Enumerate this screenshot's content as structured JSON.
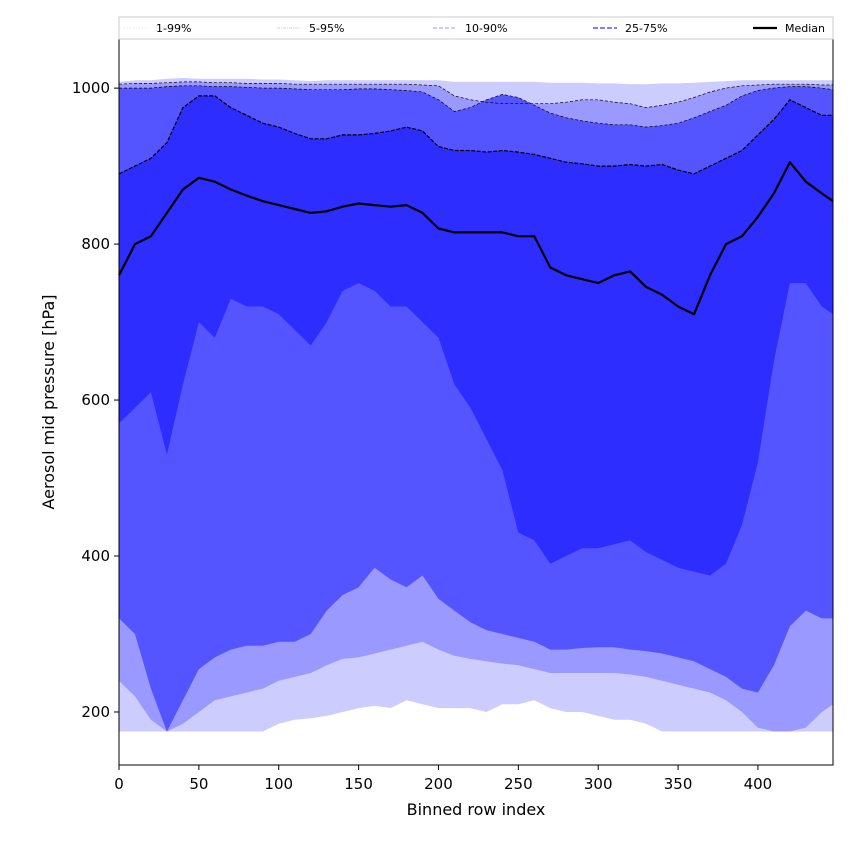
{
  "chart_data": {
    "type": "area",
    "xlabel": "Binned row index",
    "ylabel": "Aerosol mid pressure [hPa]",
    "xlim": [
      0,
      447
    ],
    "ylim": [
      132,
      1063
    ],
    "xticks": [
      0,
      50,
      100,
      150,
      200,
      250,
      300,
      350,
      400
    ],
    "yticks": [
      200,
      400,
      600,
      800,
      1000
    ],
    "grid": false,
    "legend_position": "top",
    "x": [
      0,
      10,
      20,
      30,
      40,
      50,
      60,
      70,
      80,
      90,
      100,
      110,
      120,
      130,
      140,
      150,
      160,
      170,
      180,
      190,
      200,
      210,
      220,
      230,
      240,
      250,
      260,
      270,
      280,
      290,
      300,
      310,
      320,
      330,
      340,
      350,
      360,
      370,
      380,
      390,
      400,
      410,
      420,
      430,
      440,
      447
    ],
    "bands": [
      {
        "name": "1-99%",
        "color": "#ccccff",
        "low": [
          175,
          175,
          175,
          175,
          175,
          175,
          175,
          175,
          175,
          175,
          185,
          190,
          192,
          195,
          200,
          205,
          208,
          205,
          215,
          210,
          205,
          205,
          205,
          200,
          210,
          210,
          215,
          205,
          200,
          200,
          195,
          190,
          190,
          185,
          175,
          175,
          175,
          175,
          175,
          175,
          175,
          175,
          175,
          175,
          175,
          175
        ],
        "high": [
          1008,
          1010,
          1010,
          1012,
          1013,
          1012,
          1012,
          1012,
          1012,
          1011,
          1011,
          1010,
          1009,
          1010,
          1010,
          1010,
          1010,
          1010,
          1010,
          1010,
          1010,
          1008,
          1008,
          1008,
          1008,
          1008,
          1008,
          1007,
          1007,
          1007,
          1006,
          1006,
          1005,
          1005,
          1006,
          1006,
          1007,
          1008,
          1009,
          1010,
          1010,
          1010,
          1010,
          1010,
          1010,
          1010
        ]
      },
      {
        "name": "5-95%",
        "color": "#9999ff",
        "low": [
          240,
          220,
          190,
          175,
          185,
          200,
          215,
          220,
          225,
          230,
          240,
          245,
          250,
          260,
          268,
          270,
          275,
          280,
          285,
          290,
          280,
          272,
          268,
          265,
          262,
          260,
          255,
          250,
          250,
          250,
          250,
          250,
          248,
          245,
          240,
          235,
          230,
          225,
          215,
          200,
          180,
          175,
          175,
          180,
          200,
          210
        ],
        "high": [
          1005,
          1006,
          1006,
          1007,
          1008,
          1008,
          1007,
          1007,
          1006,
          1006,
          1006,
          1005,
          1005,
          1005,
          1005,
          1005,
          1005,
          1005,
          1005,
          1004,
          1003,
          990,
          985,
          982,
          980,
          980,
          980,
          980,
          982,
          985,
          985,
          982,
          980,
          975,
          978,
          982,
          988,
          995,
          1000,
          1003,
          1004,
          1005,
          1005,
          1005,
          1004,
          1004
        ]
      },
      {
        "name": "10-90%",
        "color": "#5555ff",
        "low": [
          320,
          300,
          230,
          175,
          215,
          255,
          270,
          280,
          285,
          285,
          290,
          290,
          300,
          330,
          350,
          360,
          385,
          370,
          360,
          375,
          345,
          330,
          315,
          305,
          300,
          295,
          290,
          280,
          280,
          282,
          283,
          283,
          280,
          278,
          275,
          270,
          265,
          255,
          245,
          230,
          225,
          260,
          310,
          330,
          320,
          320
        ],
        "high": [
          1000,
          1000,
          1000,
          1002,
          1003,
          1003,
          1002,
          1002,
          1001,
          1000,
          1000,
          999,
          998,
          998,
          998,
          999,
          999,
          998,
          997,
          995,
          985,
          970,
          975,
          985,
          992,
          988,
          978,
          968,
          962,
          958,
          955,
          953,
          953,
          950,
          952,
          955,
          962,
          970,
          978,
          990,
          997,
          1000,
          1002,
          1002,
          1000,
          998
        ]
      },
      {
        "name": "25-75%",
        "color": "#2d2dff",
        "low": [
          570,
          590,
          610,
          530,
          620,
          700,
          680,
          730,
          720,
          720,
          710,
          690,
          670,
          700,
          740,
          750,
          740,
          720,
          720,
          700,
          680,
          620,
          590,
          550,
          510,
          430,
          420,
          390,
          400,
          410,
          410,
          415,
          420,
          405,
          395,
          385,
          380,
          375,
          390,
          440,
          520,
          650,
          750,
          750,
          720,
          710
        ],
        "high": [
          890,
          900,
          910,
          930,
          975,
          990,
          990,
          975,
          965,
          955,
          950,
          942,
          935,
          935,
          940,
          940,
          942,
          945,
          950,
          945,
          925,
          920,
          920,
          918,
          920,
          918,
          915,
          910,
          905,
          903,
          900,
          900,
          902,
          900,
          902,
          895,
          890,
          900,
          910,
          920,
          940,
          960,
          985,
          975,
          965,
          965
        ]
      }
    ],
    "series": [
      {
        "name": "Median",
        "color": "#000000",
        "values": [
          760,
          800,
          810,
          840,
          870,
          885,
          880,
          870,
          862,
          855,
          850,
          845,
          840,
          842,
          848,
          852,
          850,
          848,
          850,
          840,
          820,
          815,
          815,
          815,
          815,
          810,
          810,
          770,
          760,
          755,
          750,
          760,
          765,
          745,
          735,
          720,
          710,
          760,
          800,
          810,
          835,
          865,
          905,
          880,
          865,
          855
        ]
      }
    ],
    "legend": [
      {
        "label": "1-99%",
        "style": "dotted-thin",
        "color": "#ccccff"
      },
      {
        "label": "5-95%",
        "style": "dashdot-thin",
        "color": "#9999ff"
      },
      {
        "label": "10-90%",
        "style": "dashed",
        "color": "#9999ff"
      },
      {
        "label": "25-75%",
        "style": "dashed-bold",
        "color": "#5555ff"
      },
      {
        "label": "Median",
        "style": "solid",
        "color": "#000000"
      }
    ]
  }
}
